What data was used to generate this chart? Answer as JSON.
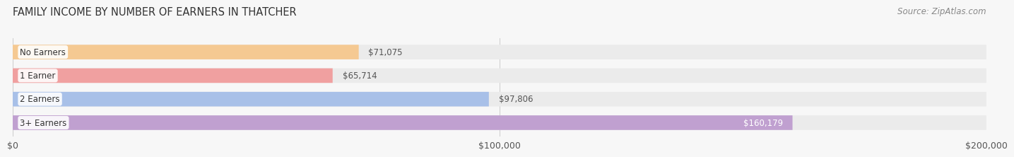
{
  "title": "FAMILY INCOME BY NUMBER OF EARNERS IN THATCHER",
  "source": "Source: ZipAtlas.com",
  "categories": [
    "No Earners",
    "1 Earner",
    "2 Earners",
    "3+ Earners"
  ],
  "values": [
    71075,
    65714,
    97806,
    160179
  ],
  "bar_colors": [
    "#f5c992",
    "#f0a0a0",
    "#a8c0e8",
    "#c0a0d0"
  ],
  "bar_bg_color": "#ebebeb",
  "label_colors": [
    "#555555",
    "#555555",
    "#555555",
    "#ffffff"
  ],
  "xlim": [
    0,
    200000
  ],
  "xticks": [
    0,
    100000,
    200000
  ],
  "xtick_labels": [
    "$0",
    "$100,000",
    "$200,000"
  ],
  "bar_height": 0.62,
  "bg_color": "#f7f7f7",
  "title_fontsize": 10.5,
  "source_fontsize": 8.5,
  "label_fontsize": 8.5,
  "category_fontsize": 8.5
}
